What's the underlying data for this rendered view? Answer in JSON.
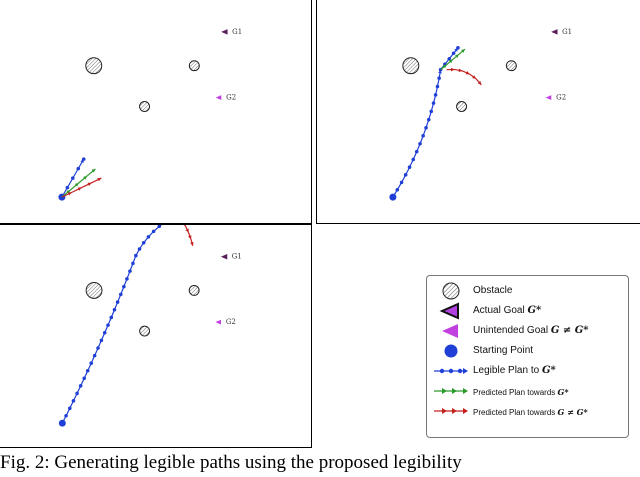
{
  "legend": {
    "obstacle": "Obstacle",
    "actual_goal": "Actual Goal",
    "actual_goal_math": "G*",
    "unintended_goal": "Unintended Goal",
    "unintended_goal_math": "G ≠ G*",
    "starting_point": "Starting Point",
    "legible_plan": "Legible Plan to",
    "legible_plan_math": "G*",
    "predicted_towards": "Predicted Plan towards",
    "predicted_towards_math": "G*",
    "predicted_other": "Predicted Plan towards",
    "predicted_other_math": "G ≠ G*"
  },
  "goals": {
    "g1": "G1",
    "g2": "G2"
  },
  "caption": "Fig. 2: Generating legible paths using the proposed legibility",
  "colors": {
    "path": "#1f3fd6",
    "predicted_actual": "#2a9a2a",
    "predicted_other": "#c42020",
    "actual_goal": "#5a1e5a",
    "unintended_goal": "#c040e0",
    "start": "#1f3fd6"
  }
}
